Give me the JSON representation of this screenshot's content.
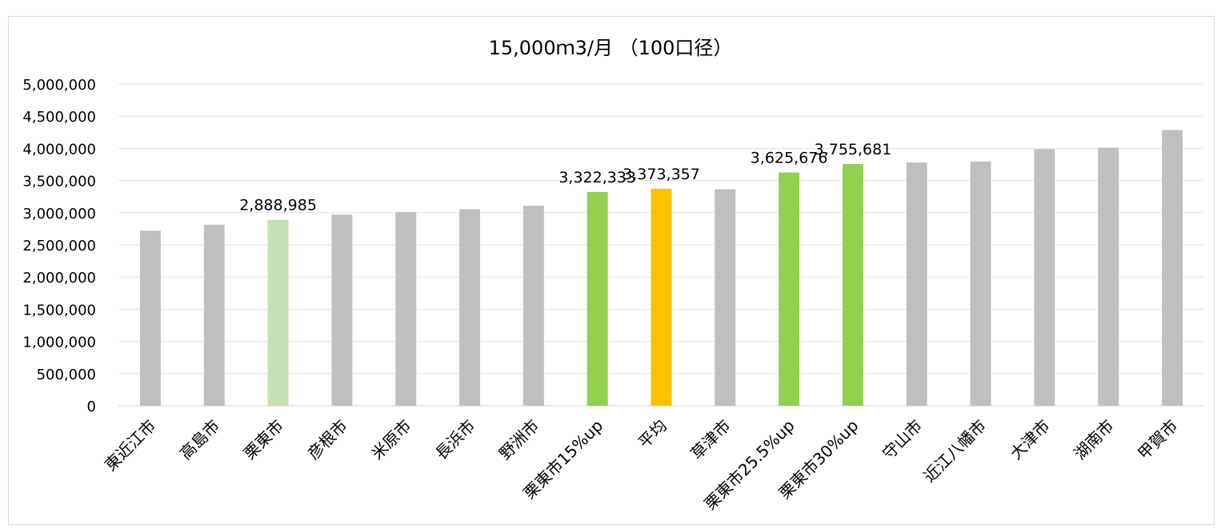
{
  "chart_data": {
    "type": "bar",
    "title": "15,000ｍ3/月 （100口径）",
    "xlabel": "",
    "ylabel": "",
    "ylim": [
      0,
      5000000
    ],
    "yticks": [
      0,
      500000,
      1000000,
      1500000,
      2000000,
      2500000,
      3000000,
      3500000,
      4000000,
      4500000,
      5000000
    ],
    "ytick_labels": [
      "0",
      "500,000",
      "1,000,000",
      "1,500,000",
      "2,000,000",
      "2,500,000",
      "3,000,000",
      "3,500,000",
      "4,000,000",
      "4,500,000",
      "5,000,000"
    ],
    "grid": true,
    "legend": "none",
    "categories": [
      "東近江市",
      "高島市",
      "栗東市",
      "彦根市",
      "米原市",
      "長浜市",
      "野洲市",
      "栗東市15%up",
      "平均",
      "草津市",
      "栗東市25.5%up",
      "栗東市30%up",
      "守山市",
      "近江八幡市",
      "大津市",
      "湖南市",
      "甲賀市"
    ],
    "values": [
      2720000,
      2815000,
      2888985,
      2970000,
      3010000,
      3055000,
      3110000,
      3322333,
      3373357,
      3365000,
      3625676,
      3755681,
      3780000,
      3795000,
      3990000,
      4010000,
      4285000
    ],
    "data_labels": [
      "",
      "",
      "2,888,985",
      "",
      "",
      "",
      "",
      "3,322,333",
      "3,373,357",
      "",
      "3,625,676",
      "3,755,681",
      "",
      "",
      "",
      "",
      ""
    ],
    "colors": [
      "#bfbfbf",
      "#bfbfbf",
      "#c5e0b4",
      "#bfbfbf",
      "#bfbfbf",
      "#bfbfbf",
      "#bfbfbf",
      "#92d050",
      "#ffc000",
      "#bfbfbf",
      "#92d050",
      "#92d050",
      "#bfbfbf",
      "#bfbfbf",
      "#bfbfbf",
      "#bfbfbf",
      "#bfbfbf"
    ]
  }
}
